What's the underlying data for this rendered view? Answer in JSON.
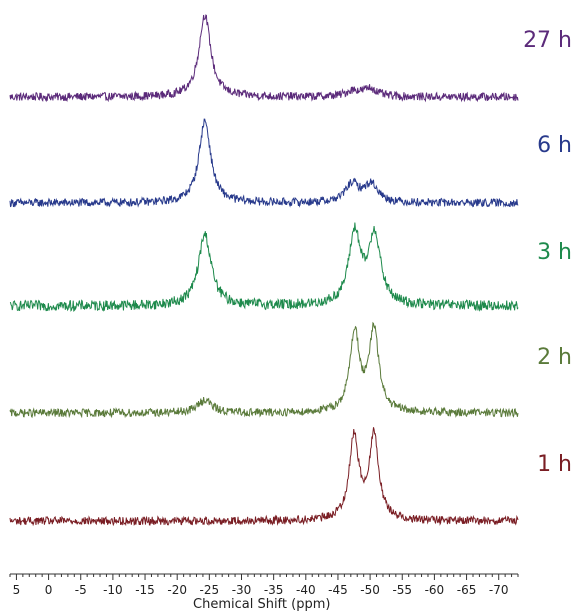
{
  "chart_data": {
    "type": "line",
    "title": "",
    "xlabel": "Chemical Shift (ppm)",
    "ylabel": "",
    "x_reversed": true,
    "xlim": [
      6,
      -73
    ],
    "xticks": [
      5,
      0,
      -5,
      -10,
      -15,
      -20,
      -25,
      -30,
      -35,
      -40,
      -45,
      -50,
      -55,
      -60,
      -65,
      -70
    ],
    "xtick_labels": [
      "5",
      "0",
      "-5",
      "-10",
      "-15",
      "-20",
      "-25",
      "-30",
      "-35",
      "-40",
      "-45",
      "-50",
      "-55",
      "-60",
      "-65",
      "-70"
    ],
    "grid": false,
    "series": [
      {
        "name": "27 h",
        "color": "#5b2a7a",
        "peaks": [
          {
            "center": -24.3,
            "height": 1.0,
            "width": 1.1
          },
          {
            "center": -47.3,
            "height": 0.07,
            "width": 1.3
          },
          {
            "center": -50.0,
            "height": 0.1,
            "width": 1.3
          }
        ],
        "noise": 0.05
      },
      {
        "name": "6 h",
        "color": "#283a8c",
        "peaks": [
          {
            "center": -24.3,
            "height": 1.0,
            "width": 1.1
          },
          {
            "center": -47.2,
            "height": 0.22,
            "width": 1.3
          },
          {
            "center": -50.2,
            "height": 0.22,
            "width": 1.3
          }
        ],
        "noise": 0.05
      },
      {
        "name": "3 h",
        "color": "#1e8a4c",
        "peaks": [
          {
            "center": -24.3,
            "height": 0.95,
            "width": 1.2
          },
          {
            "center": -47.6,
            "height": 0.95,
            "width": 1.1
          },
          {
            "center": -50.7,
            "height": 0.93,
            "width": 1.1
          }
        ],
        "noise": 0.07
      },
      {
        "name": "2 h",
        "color": "#5a7a3a",
        "peaks": [
          {
            "center": -24.3,
            "height": 0.16,
            "width": 1.3
          },
          {
            "center": -47.6,
            "height": 0.97,
            "width": 0.9
          },
          {
            "center": -50.6,
            "height": 1.0,
            "width": 0.9
          }
        ],
        "noise": 0.05
      },
      {
        "name": "1 h",
        "color": "#7a1e24",
        "peaks": [
          {
            "center": -47.5,
            "height": 1.0,
            "width": 0.9
          },
          {
            "center": -50.6,
            "height": 1.02,
            "width": 0.9
          }
        ],
        "noise": 0.05
      }
    ]
  }
}
